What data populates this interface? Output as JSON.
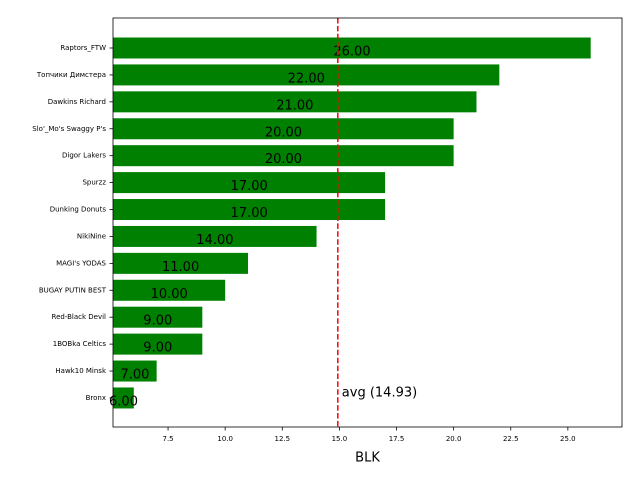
{
  "chart_data": {
    "type": "barh",
    "xlabel": "BLK",
    "categories": [
      "Raptors_FTW",
      "Топчики Димстера",
      "Dawkins Richard",
      "Slo'_Mo's Swaggy P's",
      "Digor Lakers",
      "Spurzz",
      "Dunking Donuts",
      "NikiNine",
      "MAGI's YODAS",
      "BUGAY PUTIN BEST",
      "Red-Black Devil",
      "1BOBka Celtics",
      "Hawk10 Minsk",
      "Bronx"
    ],
    "values": [
      26,
      22,
      21,
      20,
      20,
      17,
      17,
      14,
      11,
      10,
      9,
      9,
      7,
      6
    ],
    "value_labels": [
      "26.00",
      "22.00",
      "21.00",
      "20.00",
      "20.00",
      "17.00",
      "17.00",
      "14.00",
      "11.00",
      "10.00",
      "9.00",
      "9.00",
      "7.00",
      "6.00"
    ],
    "color": "#008000",
    "xlim": [
      5.09,
      27.37
    ],
    "xticks": [
      7.5,
      {
        "value": 10,
        "label": "10.0"
      },
      12.5,
      {
        "value": 15,
        "label": "15.0"
      },
      17.5,
      {
        "value": 20,
        "label": "20.0"
      },
      22.5,
      {
        "value": 25,
        "label": "25.0"
      }
    ],
    "avg": 14.93,
    "avg_color": "#ff0000",
    "avg_annotation": "avg (14.93)"
  }
}
